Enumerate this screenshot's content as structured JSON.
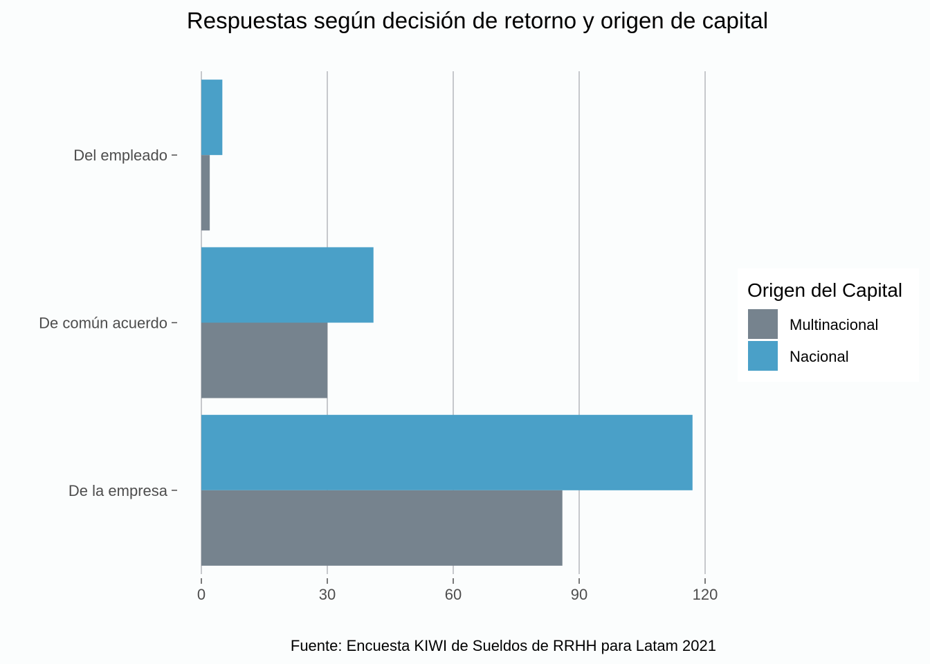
{
  "chart_data": {
    "type": "bar",
    "orientation": "horizontal",
    "title": "Respuestas según decisión de retorno y origen de capital",
    "caption": "Fuente: Encuesta KIWI de Sueldos de RRHH para Latam 2021",
    "xlabel": "",
    "ylabel": "",
    "categories": [
      "Del empleado",
      "De común acuerdo",
      "De la empresa"
    ],
    "series": [
      {
        "name": "Multinacional",
        "color": "#76838e",
        "values": [
          2,
          30,
          86
        ]
      },
      {
        "name": "Nacional",
        "color": "#4aa0c8",
        "values": [
          5,
          41,
          117
        ]
      }
    ],
    "xlim": [
      0,
      120
    ],
    "xticks": [
      0,
      30,
      60,
      90,
      120
    ],
    "grid": "vertical-major",
    "legend": {
      "title": "Origen del Capital",
      "position": "right"
    }
  }
}
